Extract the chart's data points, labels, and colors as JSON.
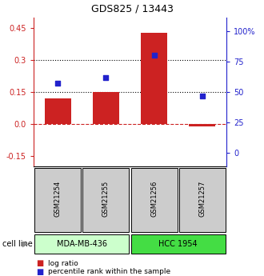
{
  "title": "GDS825 / 13443",
  "samples": [
    "GSM21254",
    "GSM21255",
    "GSM21256",
    "GSM21257"
  ],
  "log_ratios": [
    0.12,
    0.15,
    0.43,
    -0.01
  ],
  "percentile_ranks": [
    57,
    62,
    80,
    47
  ],
  "cell_lines": [
    {
      "label": "MDA-MB-436",
      "samples": [
        0,
        1
      ],
      "color": "#ccffcc"
    },
    {
      "label": "HCC 1954",
      "samples": [
        2,
        3
      ],
      "color": "#44dd44"
    }
  ],
  "cell_line_label": "cell line",
  "left_ylim": [
    -0.2,
    0.5
  ],
  "left_yticks": [
    -0.15,
    0.0,
    0.15,
    0.3,
    0.45
  ],
  "right_ylim": [
    -11.111,
    111.111
  ],
  "right_yticks": [
    0,
    25,
    50,
    75,
    100
  ],
  "right_yticklabels": [
    "0",
    "25",
    "50",
    "75",
    "100%"
  ],
  "hline_dotted": [
    0.15,
    0.3
  ],
  "hline_dashed": 0.0,
  "bar_color": "#cc2222",
  "scatter_color": "#2222cc",
  "legend_items": [
    {
      "color": "#cc2222",
      "label": "log ratio"
    },
    {
      "color": "#2222cc",
      "label": "percentile rank within the sample"
    }
  ],
  "sample_box_color": "#cccccc",
  "left_axis_color": "#cc2222",
  "right_axis_color": "#2222cc",
  "bar_width": 0.55
}
